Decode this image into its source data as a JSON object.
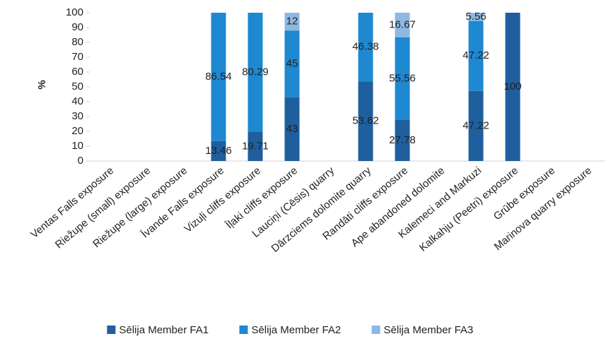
{
  "chart_data": {
    "type": "stacked_bar",
    "y_label": "%",
    "categories": [
      "Ventas Falls exposure",
      "Riežupe (small) exposure",
      "Riežupe (large) exposure",
      "Īvande Falls exposure",
      "Vizuļi cliffs exposure",
      "Īļaki cliffs exposure",
      "Lauciņi (Cēsis) quarry",
      "Dārzciems dolomite quarry",
      "Randāti cliffs exposure",
      "Ape abandoned dolomite",
      "Kalemeci and Markuzi",
      "Kalkahju (Peetri) exposure",
      "Grūbe exposure",
      "Marinova quarry exposure"
    ],
    "series": [
      {
        "name": "Sēlija Member FA1",
        "color": "#1f5f9e",
        "values": [
          null,
          null,
          null,
          13.46,
          19.71,
          43,
          null,
          53.62,
          27.78,
          null,
          47.22,
          100,
          null,
          null
        ]
      },
      {
        "name": "Sēlija Member FA2",
        "color": "#1e88d0",
        "values": [
          null,
          null,
          null,
          86.54,
          80.29,
          45,
          null,
          46.38,
          55.56,
          null,
          47.22,
          null,
          null,
          null
        ]
      },
      {
        "name": "Sēlija Member FA3",
        "color": "#8db8e3",
        "values": [
          null,
          null,
          null,
          null,
          null,
          12,
          null,
          null,
          16.67,
          null,
          5.56,
          null,
          null,
          null
        ]
      }
    ],
    "ylim": [
      0,
      100
    ],
    "yticks": [
      0,
      10,
      20,
      30,
      40,
      50,
      60,
      70,
      80,
      90,
      100
    ],
    "grid": false,
    "legend": "bottom"
  }
}
